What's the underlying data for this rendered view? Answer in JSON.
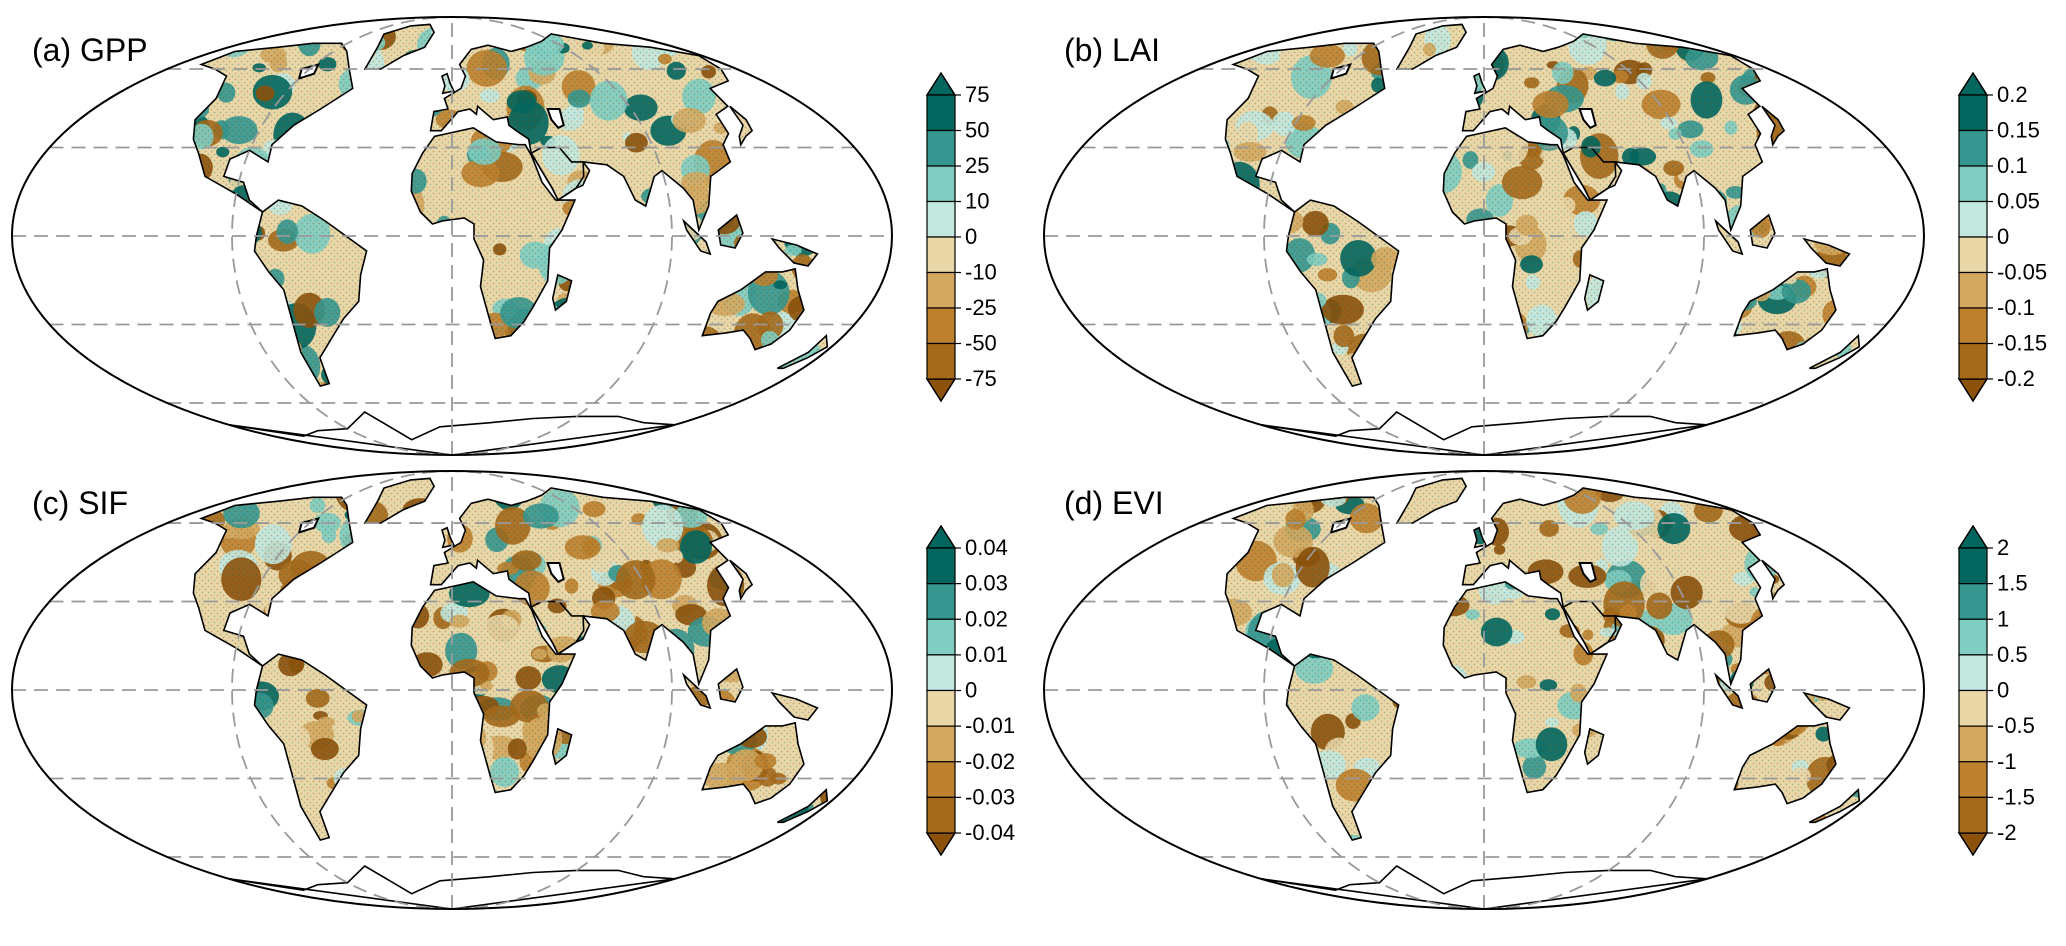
{
  "figure": {
    "projection": "mollweide",
    "graticule": "dashed gray lines every 30° latitude and 90° longitude",
    "palette_negative": [
      "#8c510a",
      "#a5691a",
      "#bf812d",
      "#d4a85f",
      "#ead7a8"
    ],
    "palette_positive": [
      "#c3e8df",
      "#80cdc1",
      "#35978f",
      "#01665e"
    ],
    "ocean_color": "#ffffff",
    "coastline_color": "#000000"
  },
  "panels": [
    {
      "id": "a",
      "title": "(a) GPP",
      "ticks": [
        "75",
        "50",
        "25",
        "10",
        "0",
        "-10",
        "-25",
        "-50",
        "-75"
      ]
    },
    {
      "id": "b",
      "title": "(b) LAI",
      "ticks": [
        "0.2",
        "0.15",
        "0.1",
        "0.05",
        "0",
        "-0.05",
        "-0.1",
        "-0.15",
        "-0.2"
      ]
    },
    {
      "id": "c",
      "title": "(c) SIF",
      "ticks": [
        "0.04",
        "0.03",
        "0.02",
        "0.01",
        "0",
        "-0.01",
        "-0.02",
        "-0.03",
        "-0.04"
      ]
    },
    {
      "id": "d",
      "title": "(d) EVI",
      "ticks": [
        "2",
        "1.5",
        "1",
        "0.5",
        "0",
        "-0.5",
        "-1",
        "-1.5",
        "-2"
      ]
    }
  ]
}
